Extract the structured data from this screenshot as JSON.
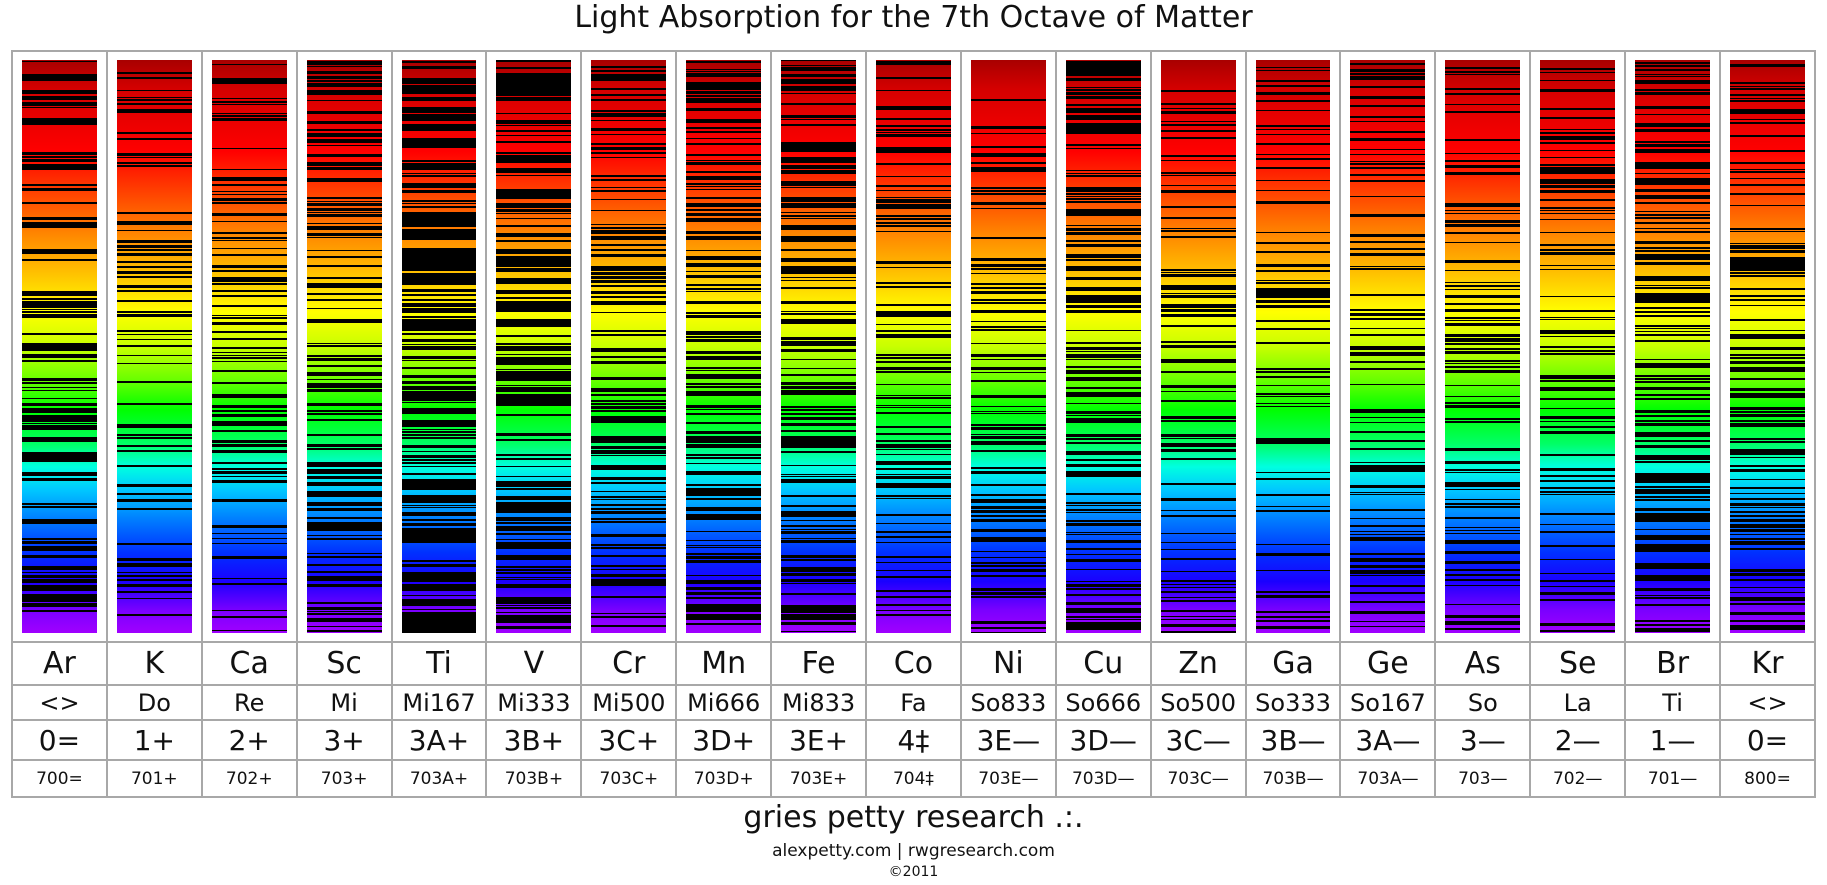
{
  "title": "Light Absorption for the 7th Octave of Matter",
  "columns": [
    {
      "symbol": "Ar",
      "note": "<>",
      "position": "0=",
      "code": "700=",
      "density": 0.55,
      "seed": 3
    },
    {
      "symbol": "K",
      "note": "Do",
      "position": "1+",
      "code": "701+",
      "density": 0.22,
      "seed": 7
    },
    {
      "symbol": "Ca",
      "note": "Re",
      "position": "2+",
      "code": "702+",
      "density": 0.3,
      "seed": 11
    },
    {
      "symbol": "Sc",
      "note": "Mi",
      "position": "3+",
      "code": "703+",
      "density": 0.5,
      "seed": 13
    },
    {
      "symbol": "Ti",
      "note": "Mi167",
      "position": "3A+",
      "code": "703A+",
      "density": 0.85,
      "seed": 17
    },
    {
      "symbol": "V",
      "note": "Mi333",
      "position": "3B+",
      "code": "703B+",
      "density": 0.7,
      "seed": 19
    },
    {
      "symbol": "Cr",
      "note": "Mi500",
      "position": "3C+",
      "code": "703C+",
      "density": 0.5,
      "seed": 23
    },
    {
      "symbol": "Mn",
      "note": "Mi666",
      "position": "3D+",
      "code": "703D+",
      "density": 0.55,
      "seed": 29
    },
    {
      "symbol": "Fe",
      "note": "Mi833",
      "position": "3E+",
      "code": "703E+",
      "density": 0.6,
      "seed": 31
    },
    {
      "symbol": "Co",
      "note": "Fa",
      "position": "4‡",
      "code": "704‡",
      "density": 0.35,
      "seed": 37
    },
    {
      "symbol": "Ni",
      "note": "So833",
      "position": "3E—",
      "code": "703E—",
      "density": 0.3,
      "seed": 41
    },
    {
      "symbol": "Cu",
      "note": "So666",
      "position": "3D—",
      "code": "703D—",
      "density": 0.6,
      "seed": 43
    },
    {
      "symbol": "Zn",
      "note": "So500",
      "position": "3C—",
      "code": "703C—",
      "density": 0.25,
      "seed": 47
    },
    {
      "symbol": "Ga",
      "note": "So333",
      "position": "3B—",
      "code": "703B—",
      "density": 0.18,
      "seed": 53
    },
    {
      "symbol": "Ge",
      "note": "So167",
      "position": "3A—",
      "code": "703A—",
      "density": 0.3,
      "seed": 59
    },
    {
      "symbol": "As",
      "note": "So",
      "position": "3—",
      "code": "703—",
      "density": 0.32,
      "seed": 61
    },
    {
      "symbol": "Se",
      "note": "La",
      "position": "2—",
      "code": "702—",
      "density": 0.3,
      "seed": 67
    },
    {
      "symbol": "Br",
      "note": "Ti",
      "position": "1—",
      "code": "701—",
      "density": 0.6,
      "seed": 71
    },
    {
      "symbol": "Kr",
      "note": "<>",
      "position": "0=",
      "code": "800=",
      "density": 0.45,
      "seed": 73
    }
  ],
  "footer": {
    "name": "gries petty research .:.",
    "urls": "alexpetty.com | rwgresearch.com",
    "copyright": "©2011"
  },
  "colors": {
    "border": "#a8a8a8",
    "absorption_line": "#000000",
    "spectrum_top": "#a80000",
    "spectrum_bottom": "#a000ff"
  }
}
